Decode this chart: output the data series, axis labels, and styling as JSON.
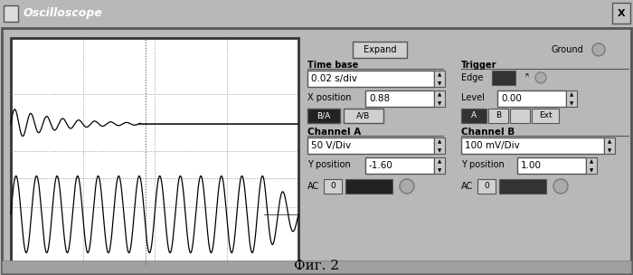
{
  "title": "Oscilloscope",
  "caption": "Фиг. 2",
  "bg_color": "#b8b8b8",
  "title_bar_color": "#888888",
  "screen_bg": "#ffffff",
  "screen_border": "#333333",
  "grid_color": "#aaaaaa",
  "wave_color": "#000000",
  "expand_btn": "Expand",
  "ground_btn": "Ground",
  "time_base_label": "Time base",
  "time_base_value": "0.02 s/div",
  "x_position_label": "X position",
  "x_position_value": "0.88",
  "trigger_label": "Trigger",
  "edge_label": "Edge",
  "level_label": "Level",
  "level_value": "0.00",
  "channel_a_label": "Channel A",
  "channel_a_div": "50 V/Div",
  "channel_a_ypos_label": "Y position",
  "channel_a_ypos": "-1.60",
  "channel_b_label": "Channel B",
  "channel_b_div": "100 mV/Div",
  "channel_b_ypos_label": "Y position",
  "channel_b_ypos": "1.00",
  "ba_btn": "B/A",
  "ab_btn": "A/B",
  "a_btn": "A",
  "b_btn": "B",
  "ext_btn": "Ext",
  "ac_label": "AC",
  "zero_label": "0"
}
